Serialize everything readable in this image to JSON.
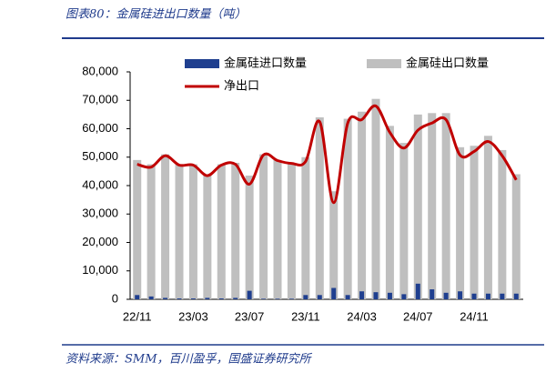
{
  "chart_data": {
    "type": "bar_line",
    "title": "图表80：金属硅进出口数量（吨）",
    "source": "资料来源：SMM，百川盈孚，国盛证券研究所",
    "categories": [
      "22/11",
      null,
      null,
      null,
      "23/03",
      null,
      null,
      null,
      "23/07",
      null,
      null,
      null,
      "23/11",
      null,
      null,
      null,
      "24/03",
      null,
      null,
      null,
      "24/07",
      null,
      null,
      null,
      "24/11",
      null,
      null,
      null
    ],
    "series": [
      {
        "name": "金属硅进口数量",
        "color": "#1f3f8f",
        "kind": "bar",
        "values": [
          1500,
          1000,
          500,
          300,
          300,
          500,
          300,
          500,
          3000,
          200,
          200,
          200,
          1500,
          1500,
          4000,
          1500,
          2800,
          2500,
          2300,
          1800,
          5500,
          3500,
          2300,
          2800,
          2000,
          2000,
          2000,
          2000
        ]
      },
      {
        "name": "金属硅出口数量",
        "color": "#bfbfbf",
        "kind": "bar",
        "values": [
          49000,
          47500,
          51000,
          47500,
          47500,
          44000,
          47500,
          48000,
          43500,
          51000,
          49000,
          48000,
          50000,
          64000,
          38000,
          63500,
          66000,
          70500,
          61000,
          55000,
          65000,
          65500,
          65500,
          53500,
          54000,
          57500,
          52500,
          44000
        ]
      },
      {
        "name": "净出口",
        "color": "#c00000",
        "kind": "line",
        "values": [
          47500,
          46500,
          50500,
          47200,
          47200,
          43500,
          47200,
          47500,
          40500,
          50800,
          48800,
          47800,
          48500,
          62500,
          34000,
          62000,
          63200,
          68000,
          58700,
          53200,
          59500,
          62000,
          63200,
          50700,
          52000,
          55500,
          50500,
          42000
        ]
      }
    ],
    "ylim": [
      0,
      80000
    ],
    "yticks": [
      0,
      {
        "value": 10000,
        "label": "10,000"
      },
      {
        "value": 20000,
        "label": "20,000"
      },
      {
        "value": 30000,
        "label": "30,000"
      },
      {
        "value": 40000,
        "label": "40,000"
      },
      {
        "value": 50000,
        "label": "50,000"
      },
      {
        "value": 60000,
        "label": "60,000"
      },
      {
        "value": 70000,
        "label": "70,000"
      },
      {
        "value": 80000,
        "label": "80,000"
      }
    ],
    "grid": false
  }
}
